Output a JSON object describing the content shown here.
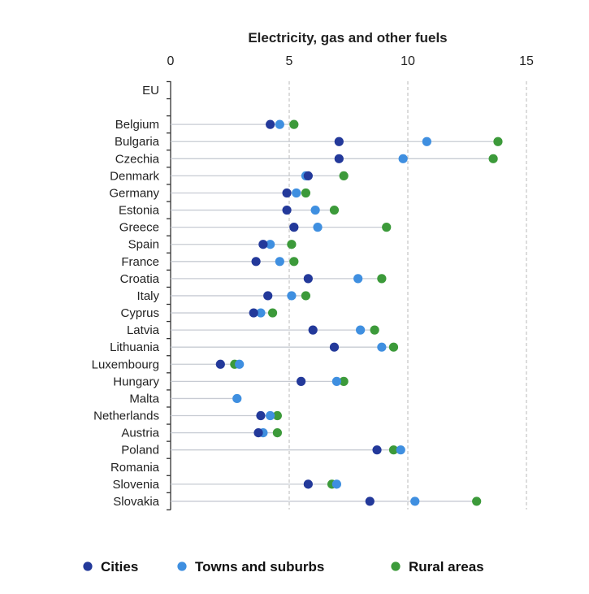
{
  "colors": {
    "cities": "#23399a",
    "towns": "#3f8fe0",
    "rural": "#3c9a3a",
    "grid": "#b8b8b8",
    "connector": "#c7cbd3",
    "axis": "#333333"
  },
  "chart_data": {
    "type": "scatter",
    "title": "Electricity, gas and other fuels",
    "xlim": [
      0,
      15
    ],
    "x_ticks": [
      0,
      5,
      10,
      15
    ],
    "x_tick_labels": [
      "0",
      "5",
      "10",
      "15"
    ],
    "grid": "vertical dashed",
    "legend_position": "bottom",
    "categories": [
      "EU",
      "",
      "Belgium",
      "Bulgaria",
      "Czechia",
      "Denmark",
      "Germany",
      "Estonia",
      "Greece",
      "Spain",
      "France",
      "Croatia",
      "Italy",
      "Cyprus",
      "Latvia",
      "Lithuania",
      "Luxembourg",
      "Hungary",
      "Malta",
      "Netherlands",
      "Austria",
      "Poland",
      "Romania",
      "Slovenia",
      "Slovakia"
    ],
    "series": [
      {
        "name": "Cities",
        "color_key": "cities",
        "values": [
          null,
          null,
          4.2,
          7.1,
          7.1,
          5.8,
          4.9,
          4.9,
          5.2,
          3.9,
          3.6,
          5.8,
          4.1,
          3.5,
          6.0,
          6.9,
          2.1,
          5.5,
          null,
          3.8,
          3.7,
          8.7,
          null,
          5.8,
          8.4
        ]
      },
      {
        "name": "Towns and suburbs",
        "color_key": "towns",
        "values": [
          null,
          null,
          4.6,
          10.8,
          9.8,
          5.7,
          5.3,
          6.1,
          6.2,
          4.2,
          4.6,
          7.9,
          5.1,
          3.8,
          8.0,
          8.9,
          2.9,
          7.0,
          2.8,
          4.2,
          3.9,
          9.7,
          null,
          7.0,
          10.3
        ]
      },
      {
        "name": "Rural areas",
        "color_key": "rural",
        "values": [
          null,
          null,
          5.2,
          13.8,
          13.6,
          7.3,
          5.7,
          6.9,
          9.1,
          5.1,
          5.2,
          8.9,
          5.7,
          4.3,
          8.6,
          9.4,
          2.7,
          7.3,
          null,
          4.5,
          4.5,
          9.4,
          null,
          6.8,
          12.9
        ]
      }
    ]
  }
}
